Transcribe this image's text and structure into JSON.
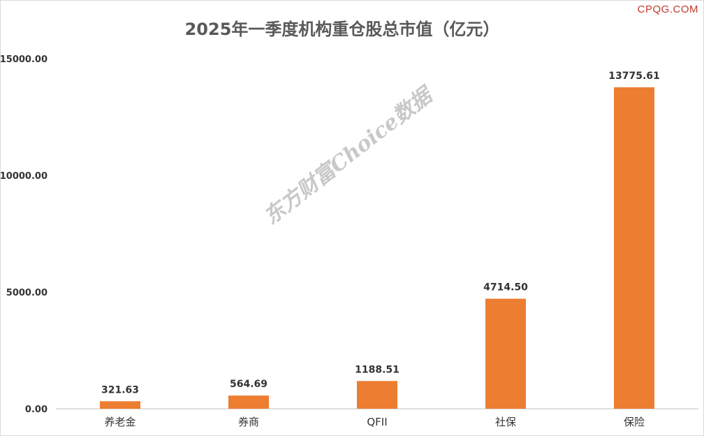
{
  "brand": "CPQG.COM",
  "watermark": "东方财富Choice数据",
  "colors": {
    "bar": "#ED7D31",
    "axis": "#bfbfbf",
    "text": "#333333"
  },
  "chart_data": {
    "type": "bar",
    "title": "2025年一季度机构重仓股总市值（亿元）",
    "categories": [
      "养老金",
      "券商",
      "QFII",
      "社保",
      "保险"
    ],
    "values": [
      321.63,
      564.69,
      1188.51,
      4714.5,
      13775.61
    ],
    "value_labels": [
      "321.63",
      "564.69",
      "1188.51",
      "4714.50",
      "13775.61"
    ],
    "yticks": [
      0,
      5000,
      10000,
      15000
    ],
    "ytick_labels": [
      "0.00",
      "5000.00",
      "10000.00",
      "15000.00"
    ],
    "ylim": [
      0,
      15000
    ],
    "xlabel": "",
    "ylabel": "",
    "grid": false,
    "legend": "none"
  }
}
